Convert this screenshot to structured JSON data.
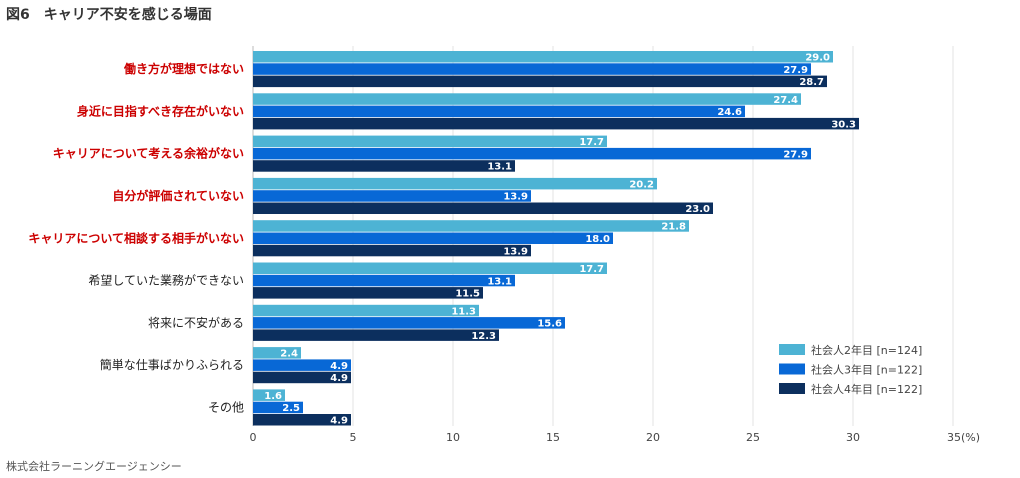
{
  "title": {
    "figure_no": "図6",
    "text": "キャリア不安を感じる場面"
  },
  "source": "株式会社ラーニングエージェンシー",
  "chart_data": {
    "type": "bar",
    "orientation": "horizontal",
    "categories": [
      "働き方が理想ではない",
      "身近に目指すべき存在がいない",
      "キャリアについて考える余裕がない",
      "自分が評価されていない",
      "キャリアについて相談する相手がいない",
      "希望していた業務ができない",
      "将来に不安がある",
      "簡単な仕事ばかりふられる",
      "その他"
    ],
    "highlighted": [
      true,
      true,
      true,
      true,
      true,
      false,
      false,
      false,
      false
    ],
    "series": [
      {
        "name": "社会人2年目 [n=124]",
        "color": "#4db3d4",
        "values": [
          29.0,
          27.4,
          17.7,
          20.2,
          21.8,
          17.7,
          11.3,
          2.4,
          1.6
        ],
        "labels": [
          "29.0",
          "27.4",
          "17.7",
          "20.2",
          "21.8",
          "17.7",
          "11.3",
          "2.4",
          "1.6"
        ]
      },
      {
        "name": "社会人3年目 [n=122]",
        "color": "#0868d6",
        "values": [
          27.9,
          24.6,
          27.9,
          13.9,
          18.0,
          13.1,
          15.6,
          4.9,
          2.5
        ],
        "labels": [
          "27.9",
          "24.6",
          "27.9",
          "13.9",
          "18.0",
          "13.1",
          "15.6",
          "4.9",
          "2.5"
        ]
      },
      {
        "name": "社会人4年目 [n=122]",
        "color": "#0c2f5e",
        "values": [
          28.7,
          30.3,
          13.1,
          23.0,
          13.9,
          11.5,
          12.3,
          4.9,
          4.9
        ],
        "labels": [
          "28.7",
          "30.3",
          "13.1",
          "23.0",
          "13.9",
          "11.5",
          "12.3",
          "4.9",
          "4.9"
        ]
      }
    ],
    "xlim": [
      0,
      35
    ],
    "xticks": [
      0,
      5,
      10,
      15,
      20,
      25,
      30,
      35
    ],
    "xtick_labels": [
      "0",
      "5",
      "10",
      "15",
      "20",
      "25",
      "30",
      "35(%)"
    ],
    "grid": true,
    "legend_position": "bottom-right"
  }
}
